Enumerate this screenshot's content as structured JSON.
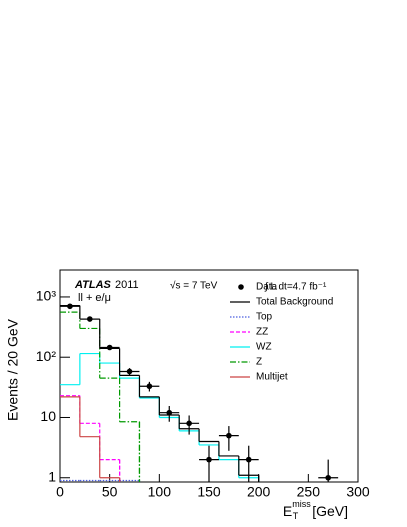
{
  "chart_data": {
    "type": "histogram",
    "x_label": {
      "main": "E",
      "sub": "T",
      "sup": "miss",
      "unit": "[GeV]"
    },
    "y_label": "Events / 20 GeV",
    "annotations": {
      "experiment": "ATLAS",
      "year": "2011",
      "energy": "√s = 7 TeV",
      "channel": "ll + e/μ",
      "lumi": "∫ L dt=4.7 fb⁻¹"
    },
    "log_y": true,
    "bins": [
      0,
      20,
      40,
      60,
      80,
      100,
      120,
      140,
      160,
      180,
      200,
      220,
      240,
      260,
      280,
      300
    ],
    "xlim": [
      0,
      300
    ],
    "xticks": [
      0,
      50,
      100,
      150,
      200,
      250,
      300
    ],
    "ylim": [
      0.85,
      2800
    ],
    "yticks": [
      {
        "value": 1,
        "label": "1"
      },
      {
        "value": 10,
        "label": "10"
      },
      {
        "value": 100,
        "label": "10²"
      },
      {
        "value": 1000,
        "label": "10³"
      }
    ],
    "data": {
      "name": "Data",
      "color": "#000000",
      "values": [
        700,
        430,
        145,
        58,
        33,
        12,
        8,
        2,
        5,
        2,
        null,
        null,
        null,
        1,
        null
      ],
      "errors": [
        26,
        21,
        12,
        8,
        6,
        3.5,
        2.8,
        1.4,
        2.2,
        1.4,
        null,
        null,
        null,
        1,
        null
      ]
    },
    "series": [
      {
        "name": "Top",
        "color": "#4c5fe0",
        "dash": "1.5,1.5",
        "values": [
          0.9,
          0.9,
          0.9,
          0.9,
          null,
          null,
          null,
          null,
          null,
          null,
          null,
          null,
          null,
          null,
          null
        ]
      },
      {
        "name": "ZZ",
        "color": "#ff00ff",
        "dash": "4,2",
        "values": [
          23,
          8,
          2,
          null,
          null,
          null,
          null,
          null,
          null,
          null,
          null,
          null,
          null,
          null,
          null
        ]
      },
      {
        "name": "WZ",
        "color": "#00f0f0",
        "dash": "",
        "values": [
          35,
          115,
          80,
          45,
          21,
          10,
          6,
          3.5,
          2,
          1,
          null,
          null,
          null,
          null,
          null
        ]
      },
      {
        "name": "Z",
        "color": "#009900",
        "dash": "6,2,1.5,2",
        "values": [
          560,
          300,
          45,
          8.5,
          null,
          null,
          null,
          null,
          null,
          null,
          null,
          null,
          null,
          null,
          null
        ]
      },
      {
        "name": "Multijet",
        "color": "#cc4444",
        "dash": "",
        "values": [
          22,
          4.8,
          1,
          null,
          null,
          null,
          null,
          null,
          null,
          null,
          null,
          null,
          null,
          null,
          null
        ]
      },
      {
        "name": "Total Background",
        "color": "#000000",
        "dash": "",
        "values": [
          720,
          430,
          140,
          50,
          22,
          11,
          6.5,
          4,
          2.3,
          1.1,
          null,
          null,
          null,
          null,
          null
        ]
      }
    ]
  }
}
